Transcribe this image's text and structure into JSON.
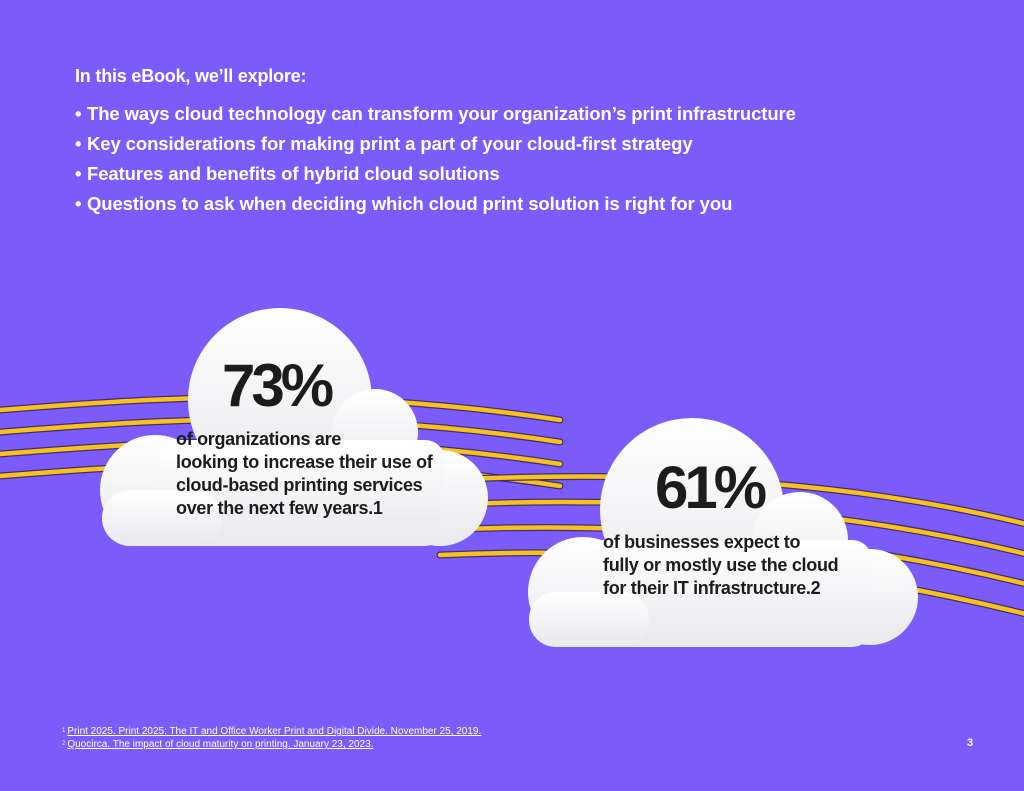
{
  "intro": {
    "heading": "In this eBook, we’ll explore:",
    "bullet_char": "•",
    "bullets": [
      "The ways cloud technology can transform your organization’s print infrastructure",
      "Key considerations for making print a part of your cloud-first strategy",
      "Features and benefits of hybrid cloud solutions",
      "Questions to ask when deciding which cloud print solution is right for you"
    ]
  },
  "stats": [
    {
      "value": "73%",
      "lines": [
        "of organizations are",
        "looking to increase their use of",
        "cloud-based printing services",
        "over the next few years.1"
      ]
    },
    {
      "value": "61%",
      "lines": [
        "of businesses expect to",
        "fully or mostly use the cloud",
        "for their IT infrastructure.2"
      ]
    }
  ],
  "footnotes": [
    {
      "marker": "1",
      "text": "Print 2025. Print 2025: The IT and Office Worker Print and Digital Divide. November 25, 2019."
    },
    {
      "marker": "2",
      "text": "Quocirca. The impact of cloud maturity on printing. January 23, 2023."
    }
  ],
  "page_number": "3",
  "colors": {
    "background": "#7B5CFA",
    "stripe": "#F8C21C",
    "stripe_outline": "#3D2E7A",
    "cloud": "#F6F6F8",
    "stat_text": "#1C1C1C"
  }
}
